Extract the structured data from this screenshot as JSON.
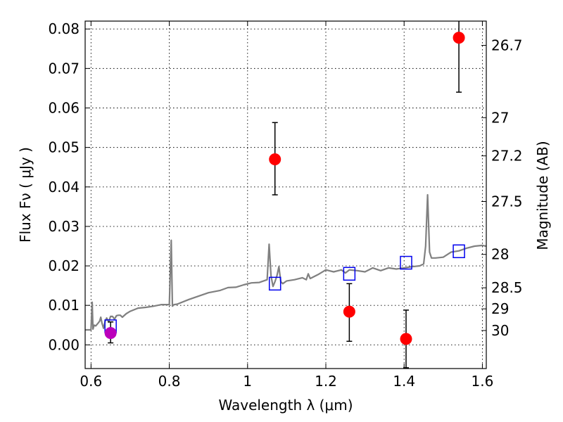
{
  "chart_data": {
    "type": "scatter",
    "title": "",
    "xlabel": "Wavelength  λ (μm)",
    "ylabel": "Flux  Fν  ( μJy )",
    "ylabel_right": "Magnitude (AB)",
    "xlim": [
      0.585,
      1.61
    ],
    "ylim": [
      -0.006,
      0.082
    ],
    "grid": true,
    "x_ticks": [
      0.6,
      0.8,
      1.0,
      1.2,
      1.4,
      1.6
    ],
    "x_tick_labels": [
      "0.6",
      "0.8",
      "1",
      "1.2",
      "1.4",
      "1.6"
    ],
    "y_ticks": [
      0.0,
      0.01,
      0.02,
      0.03,
      0.04,
      0.05,
      0.06,
      0.07,
      0.08
    ],
    "y_tick_labels": [
      "0.00",
      "0.01",
      "0.02",
      "0.03",
      "0.04",
      "0.05",
      "0.06",
      "0.07",
      "0.08"
    ],
    "right_ticks": [
      26.7,
      27,
      27.2,
      27.5,
      28,
      28.5,
      29,
      30
    ],
    "right_tick_labels": [
      "26.7",
      "27",
      "27.2",
      "27.5",
      "28",
      "28.5",
      "29",
      "30"
    ],
    "colors": {
      "spectrum": "#808080",
      "model": "#0000ee",
      "observed": "#ff0000",
      "observed_special": "#bb00bb",
      "errorbar": "#000000"
    },
    "series": [
      {
        "kind": "line",
        "x": [
          0.585,
          0.6,
          0.603,
          0.605,
          0.608,
          0.612,
          0.618,
          0.622,
          0.625,
          0.628,
          0.632,
          0.636,
          0.64,
          0.645,
          0.65,
          0.655,
          0.66,
          0.665,
          0.67,
          0.675,
          0.68,
          0.69,
          0.7,
          0.72,
          0.74,
          0.76,
          0.78,
          0.8,
          0.805,
          0.808,
          0.812,
          0.82,
          0.85,
          0.88,
          0.9,
          0.93,
          0.95,
          0.97,
          0.99,
          1.01,
          1.03,
          1.05,
          1.055,
          1.06,
          1.065,
          1.07,
          1.075,
          1.08,
          1.085,
          1.09,
          1.1,
          1.12,
          1.14,
          1.15,
          1.155,
          1.16,
          1.18,
          1.2,
          1.22,
          1.24,
          1.25,
          1.26,
          1.28,
          1.3,
          1.32,
          1.34,
          1.36,
          1.38,
          1.4,
          1.42,
          1.44,
          1.45,
          1.455,
          1.46,
          1.465,
          1.47,
          1.48,
          1.5,
          1.52,
          1.54,
          1.56,
          1.58,
          1.6,
          1.61
        ],
        "y": [
          0.0038,
          0.0038,
          0.0108,
          0.004,
          0.005,
          0.0048,
          0.0055,
          0.006,
          0.007,
          0.0055,
          0.0042,
          0.006,
          0.0068,
          0.0058,
          0.0072,
          0.0072,
          0.0065,
          0.0074,
          0.0075,
          0.0075,
          0.007,
          0.0079,
          0.0085,
          0.0093,
          0.0095,
          0.0098,
          0.0102,
          0.0102,
          0.0265,
          0.0098,
          0.0102,
          0.0103,
          0.0115,
          0.0125,
          0.0132,
          0.0138,
          0.0145,
          0.0146,
          0.0152,
          0.0157,
          0.0158,
          0.0165,
          0.0255,
          0.0175,
          0.0148,
          0.016,
          0.0175,
          0.0198,
          0.016,
          0.0155,
          0.0162,
          0.0165,
          0.017,
          0.0165,
          0.018,
          0.0168,
          0.0178,
          0.019,
          0.0185,
          0.019,
          0.0182,
          0.019,
          0.0188,
          0.0185,
          0.0195,
          0.0188,
          0.0195,
          0.0192,
          0.0195,
          0.0198,
          0.02,
          0.0205,
          0.025,
          0.038,
          0.0235,
          0.022,
          0.022,
          0.0222,
          0.0235,
          0.0238,
          0.0245,
          0.025,
          0.0252,
          0.025
        ]
      },
      {
        "kind": "squares",
        "x": [
          0.65,
          1.07,
          1.26,
          1.405,
          1.54
        ],
        "y": [
          0.0047,
          0.0155,
          0.018,
          0.0208,
          0.0237
        ]
      },
      {
        "kind": "points",
        "x": [
          0.65,
          1.07,
          1.26,
          1.405,
          1.54
        ],
        "y": [
          0.003,
          0.047,
          0.0084,
          0.0015,
          0.0778
        ],
        "err_low": [
          0.0005,
          0.038,
          0.0009,
          -0.0058,
          0.064
        ],
        "err_high": [
          0.0058,
          0.0563,
          0.0155,
          0.0088,
          0.0825
        ],
        "highlight_index": 0
      }
    ]
  }
}
